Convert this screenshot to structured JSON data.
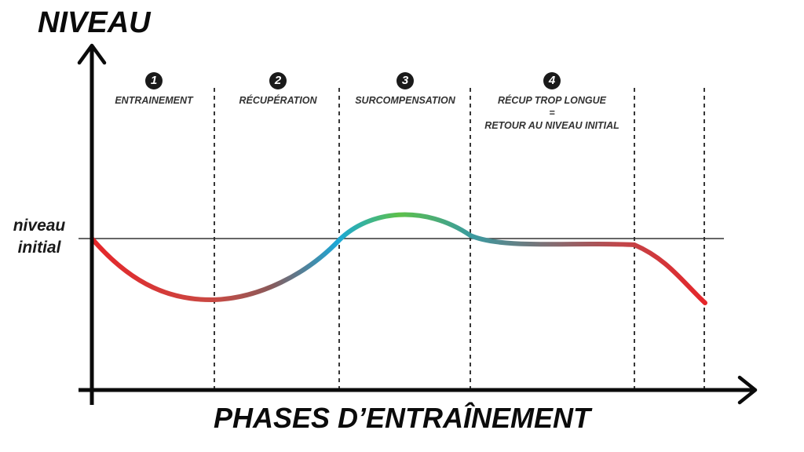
{
  "axes": {
    "y_title": "NIVEAU",
    "x_title": "PHASES D’ENTRAÎNEMENT"
  },
  "baseline_label": [
    "niveau",
    "initial"
  ],
  "phases": [
    {
      "number": "1",
      "label_lines": [
        "ENTRAINEMENT"
      ]
    },
    {
      "number": "2",
      "label_lines": [
        "RÉCUPÉRATION"
      ]
    },
    {
      "number": "3",
      "label_lines": [
        "SURCOMPENSATION"
      ]
    },
    {
      "number": "4",
      "label_lines": [
        "RÉCUP TROP LONGUE",
        "=",
        "RETOUR AU NIVEAU INITIAL"
      ]
    }
  ],
  "colors": {
    "axis": "#0b0b0b",
    "curve_red": "#e5262a",
    "curve_brown": "#8a5a5a",
    "curve_blue": "#1aa8d8",
    "curve_green": "#5dc04a",
    "curve_teal": "#3a8fa3",
    "baseline": "#333333",
    "dashes": "#222222"
  }
}
